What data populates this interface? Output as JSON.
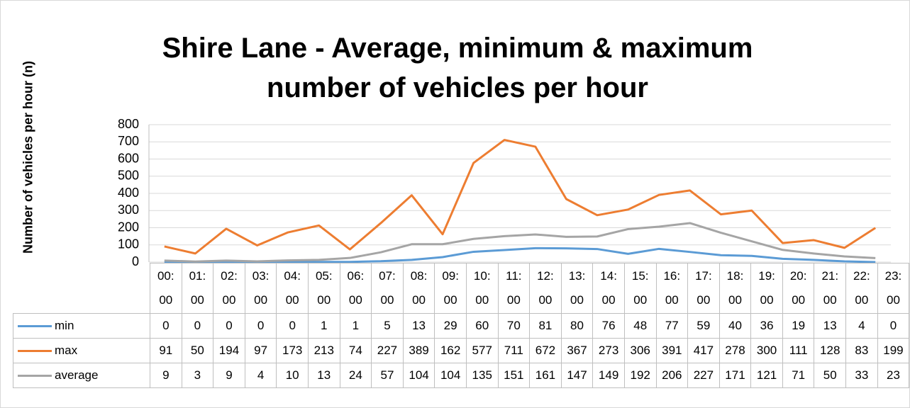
{
  "chart_data": {
    "type": "line",
    "title": "Shire Lane - Average, minimum & maximum number of vehicles per hour",
    "y_label": "Number of vehicles per hour (n)",
    "categories": [
      "00:00",
      "01:00",
      "02:00",
      "03:00",
      "04:00",
      "05:00",
      "06:00",
      "07:00",
      "08:00",
      "09:00",
      "10:00",
      "11:00",
      "12:00",
      "13:00",
      "14:00",
      "15:00",
      "16:00",
      "17:00",
      "18:00",
      "19:00",
      "20:00",
      "21:00",
      "22:00",
      "23:00"
    ],
    "series": [
      {
        "name": "min",
        "color": "#5b9bd5",
        "values": [
          0,
          0,
          0,
          0,
          0,
          1,
          1,
          5,
          13,
          29,
          60,
          70,
          81,
          80,
          76,
          48,
          77,
          59,
          40,
          36,
          19,
          13,
          4,
          0
        ]
      },
      {
        "name": "max",
        "color": "#ed7d31",
        "values": [
          91,
          50,
          194,
          97,
          173,
          213,
          74,
          227,
          389,
          162,
          577,
          711,
          672,
          367,
          273,
          306,
          391,
          417,
          278,
          300,
          111,
          128,
          83,
          199
        ]
      },
      {
        "name": "average",
        "color": "#a5a5a5",
        "values": [
          9,
          3,
          9,
          4,
          10,
          13,
          24,
          57,
          104,
          104,
          135,
          151,
          161,
          147,
          149,
          192,
          206,
          227,
          171,
          121,
          71,
          50,
          33,
          23
        ]
      }
    ],
    "ylim": [
      0,
      800
    ],
    "yticks": [
      0,
      100,
      200,
      300,
      400,
      500,
      600,
      700,
      800
    ],
    "grid": true
  }
}
